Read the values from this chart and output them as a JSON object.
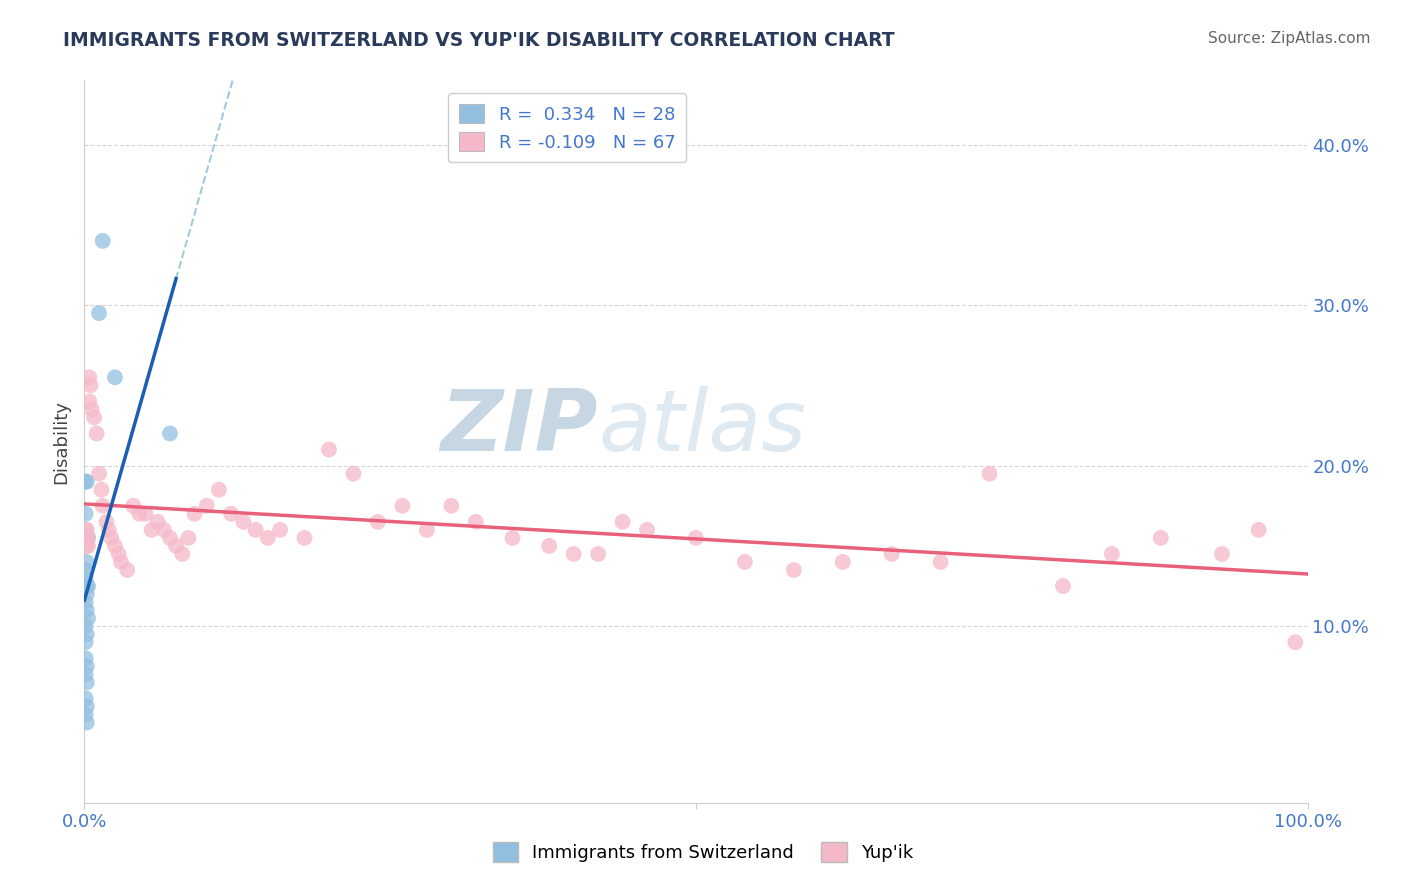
{
  "title": "IMMIGRANTS FROM SWITZERLAND VS YUP'IK DISABILITY CORRELATION CHART",
  "source": "Source: ZipAtlas.com",
  "ylabel": "Disability",
  "y_ticks": [
    0.1,
    0.2,
    0.3,
    0.4
  ],
  "y_tick_labels": [
    "10.0%",
    "20.0%",
    "30.0%",
    "40.0%"
  ],
  "xlim": [
    0.0,
    1.0
  ],
  "ylim": [
    -0.01,
    0.44
  ],
  "r_blue": 0.334,
  "n_blue": 28,
  "r_pink": -0.109,
  "n_pink": 67,
  "legend_label_blue": "Immigrants from Switzerland",
  "legend_label_pink": "Yup'ik",
  "watermark_zip": "ZIP",
  "watermark_atlas": "atlas",
  "blue_color": "#92bfdf",
  "pink_color": "#f5b8c8",
  "blue_line_color": "#1a5fb4",
  "pink_line_color": "#e8607a",
  "blue_scatter": [
    [
      0.001,
      0.135
    ],
    [
      0.002,
      0.125
    ],
    [
      0.001,
      0.19
    ],
    [
      0.002,
      0.19
    ],
    [
      0.001,
      0.17
    ],
    [
      0.003,
      0.155
    ],
    [
      0.002,
      0.14
    ],
    [
      0.001,
      0.13
    ],
    [
      0.003,
      0.125
    ],
    [
      0.002,
      0.12
    ],
    [
      0.001,
      0.115
    ],
    [
      0.002,
      0.11
    ],
    [
      0.003,
      0.105
    ],
    [
      0.001,
      0.1
    ],
    [
      0.002,
      0.095
    ],
    [
      0.001,
      0.09
    ],
    [
      0.001,
      0.08
    ],
    [
      0.002,
      0.075
    ],
    [
      0.001,
      0.07
    ],
    [
      0.002,
      0.065
    ],
    [
      0.001,
      0.055
    ],
    [
      0.002,
      0.05
    ],
    [
      0.001,
      0.045
    ],
    [
      0.002,
      0.04
    ],
    [
      0.015,
      0.34
    ],
    [
      0.012,
      0.295
    ],
    [
      0.025,
      0.255
    ],
    [
      0.07,
      0.22
    ]
  ],
  "pink_scatter": [
    [
      0.001,
      0.16
    ],
    [
      0.002,
      0.16
    ],
    [
      0.003,
      0.155
    ],
    [
      0.001,
      0.155
    ],
    [
      0.002,
      0.15
    ],
    [
      0.003,
      0.15
    ],
    [
      0.004,
      0.255
    ],
    [
      0.005,
      0.25
    ],
    [
      0.004,
      0.24
    ],
    [
      0.006,
      0.235
    ],
    [
      0.008,
      0.23
    ],
    [
      0.01,
      0.22
    ],
    [
      0.012,
      0.195
    ],
    [
      0.014,
      0.185
    ],
    [
      0.015,
      0.175
    ],
    [
      0.018,
      0.165
    ],
    [
      0.02,
      0.16
    ],
    [
      0.022,
      0.155
    ],
    [
      0.025,
      0.15
    ],
    [
      0.028,
      0.145
    ],
    [
      0.03,
      0.14
    ],
    [
      0.035,
      0.135
    ],
    [
      0.04,
      0.175
    ],
    [
      0.045,
      0.17
    ],
    [
      0.05,
      0.17
    ],
    [
      0.055,
      0.16
    ],
    [
      0.06,
      0.165
    ],
    [
      0.065,
      0.16
    ],
    [
      0.07,
      0.155
    ],
    [
      0.075,
      0.15
    ],
    [
      0.08,
      0.145
    ],
    [
      0.085,
      0.155
    ],
    [
      0.09,
      0.17
    ],
    [
      0.1,
      0.175
    ],
    [
      0.11,
      0.185
    ],
    [
      0.12,
      0.17
    ],
    [
      0.13,
      0.165
    ],
    [
      0.14,
      0.16
    ],
    [
      0.15,
      0.155
    ],
    [
      0.16,
      0.16
    ],
    [
      0.18,
      0.155
    ],
    [
      0.2,
      0.21
    ],
    [
      0.22,
      0.195
    ],
    [
      0.24,
      0.165
    ],
    [
      0.26,
      0.175
    ],
    [
      0.28,
      0.16
    ],
    [
      0.3,
      0.175
    ],
    [
      0.32,
      0.165
    ],
    [
      0.35,
      0.155
    ],
    [
      0.38,
      0.15
    ],
    [
      0.4,
      0.145
    ],
    [
      0.42,
      0.145
    ],
    [
      0.44,
      0.165
    ],
    [
      0.46,
      0.16
    ],
    [
      0.5,
      0.155
    ],
    [
      0.54,
      0.14
    ],
    [
      0.58,
      0.135
    ],
    [
      0.62,
      0.14
    ],
    [
      0.66,
      0.145
    ],
    [
      0.7,
      0.14
    ],
    [
      0.74,
      0.195
    ],
    [
      0.8,
      0.125
    ],
    [
      0.84,
      0.145
    ],
    [
      0.88,
      0.155
    ],
    [
      0.93,
      0.145
    ],
    [
      0.96,
      0.16
    ],
    [
      0.99,
      0.09
    ]
  ],
  "background_color": "#ffffff",
  "grid_color": "#cccccc"
}
